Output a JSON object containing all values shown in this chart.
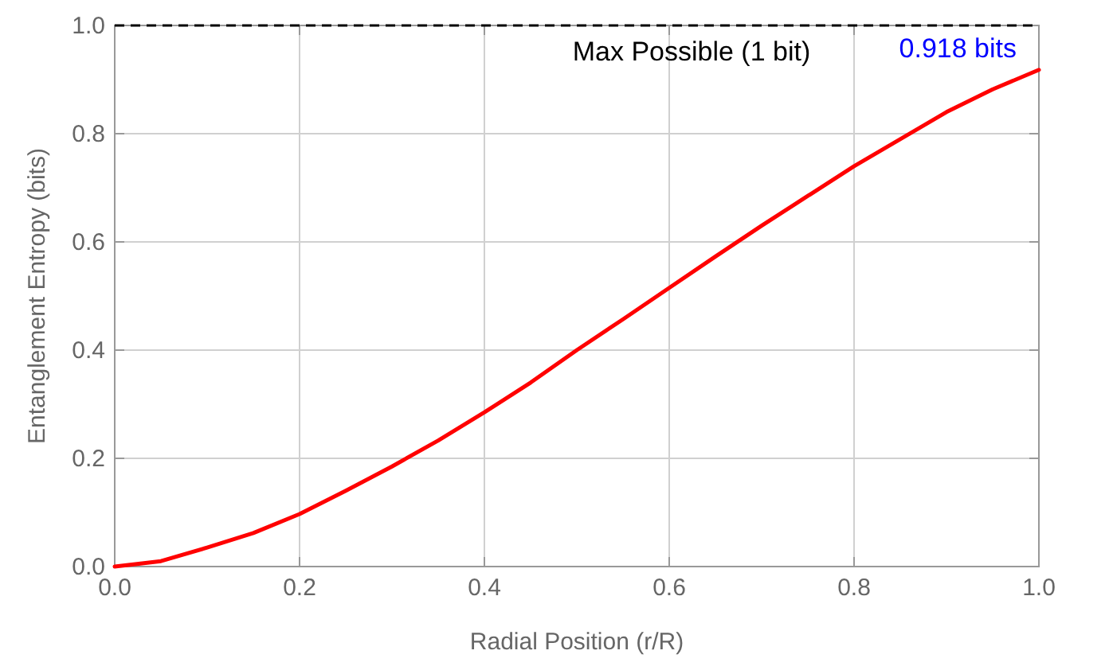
{
  "chart_data": {
    "type": "line",
    "xlabel": "Radial Position (r/R)",
    "ylabel": "Entanglement Entropy (bits)",
    "x": [
      0,
      0.05,
      0.1,
      0.15,
      0.2,
      0.25,
      0.3,
      0.35,
      0.4,
      0.45,
      0.5,
      0.55,
      0.6,
      0.65,
      0.7,
      0.75,
      0.8,
      0.85,
      0.9,
      0.95,
      1.0
    ],
    "series": [
      {
        "color": "#ff0000",
        "values": [
          0,
          0.01,
          0.035,
          0.062,
          0.097,
          0.14,
          0.185,
          0.233,
          0.285,
          0.34,
          0.4,
          0.457,
          0.515,
          0.573,
          0.63,
          0.685,
          0.74,
          0.79,
          0.84,
          0.882,
          0.918
        ]
      }
    ],
    "xlim": [
      0,
      1
    ],
    "ylim": [
      0,
      1
    ],
    "xticks": [
      {
        "value": 0,
        "label": "0.0"
      },
      0.2,
      0.4,
      0.6,
      0.8,
      {
        "value": 1,
        "label": "1.0"
      }
    ],
    "yticks": [
      {
        "value": 0,
        "label": "0.0"
      },
      0.2,
      0.4,
      0.6,
      0.8,
      {
        "value": 1,
        "label": "1.0"
      }
    ],
    "grid": true,
    "line_style": "solid",
    "marker": "none",
    "ref_lines": [
      {
        "axis": "y",
        "value": 1,
        "label": "Max Possible (1 bit)",
        "color": "#000000",
        "line_style": "dashed"
      }
    ],
    "annotations": [
      {
        "text": "0.918 bits",
        "x": 1,
        "y": 0.918
      }
    ]
  }
}
